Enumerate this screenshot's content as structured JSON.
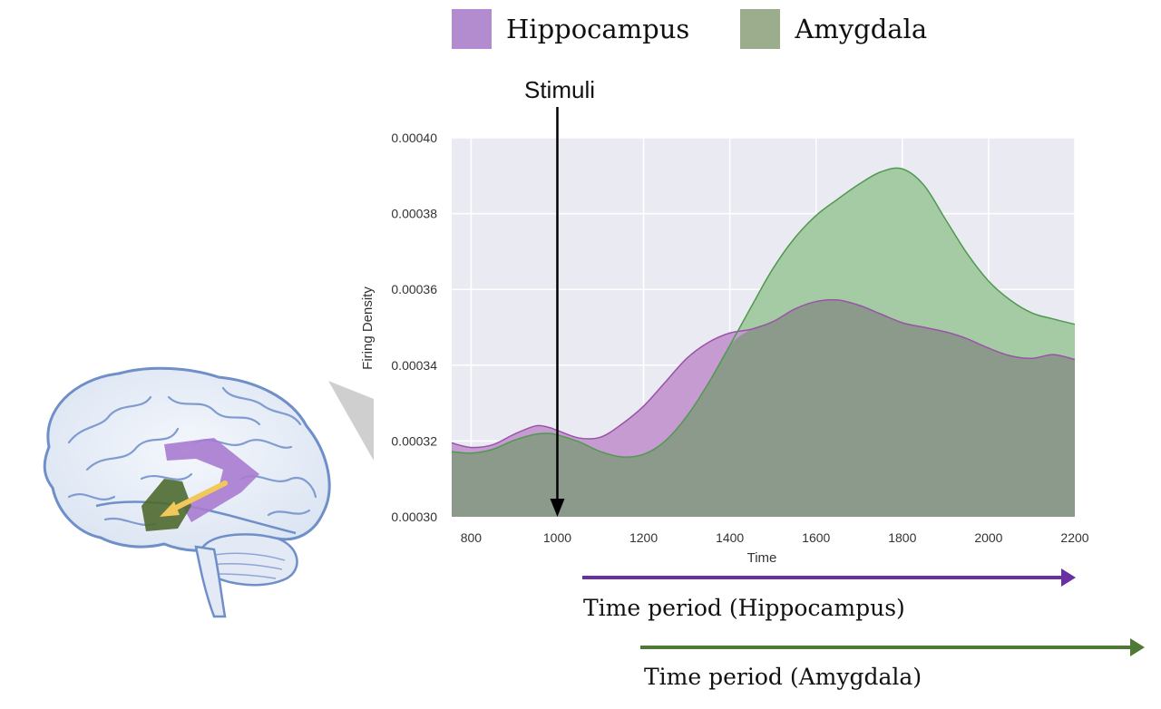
{
  "legend": {
    "items": [
      {
        "label": "Hippocampus",
        "color": "#b28ccf"
      },
      {
        "label": "Amygdala",
        "color": "#9cad8e"
      }
    ]
  },
  "annotations": {
    "stimuli_label": "Stimuli",
    "stimuli_time": 1000,
    "hippocampus_period_label": "Time period (Hippocampus)",
    "amygdala_period_label": "Time period (Amygdala)",
    "hippocampus_period_color": "#6a2fa0",
    "amygdala_period_color": "#4e7a35"
  },
  "chart_data": {
    "type": "area",
    "title": "",
    "xlabel": "Time",
    "ylabel": "Firing Density",
    "xlim": [
      755,
      2200
    ],
    "ylim": [
      0.0003,
      0.0004
    ],
    "xticks": [
      800,
      1000,
      1200,
      1400,
      1600,
      1800,
      2000,
      2200
    ],
    "yticks": [
      "0.00030",
      "0.00032",
      "0.00034",
      "0.00036",
      "0.00038",
      "0.00040"
    ],
    "grid": true,
    "series": [
      {
        "name": "Hippocampus",
        "fill": "#c69bd1",
        "stroke": "#9a53a8",
        "x": [
          755,
          800,
          850,
          900,
          950,
          980,
          1000,
          1050,
          1100,
          1150,
          1200,
          1250,
          1300,
          1350,
          1400,
          1450,
          1500,
          1550,
          1600,
          1650,
          1700,
          1750,
          1800,
          1850,
          1900,
          1950,
          2000,
          2050,
          2100,
          2150,
          2200
        ],
        "y": [
          0.0003195,
          0.0003183,
          0.000319,
          0.0003218,
          0.000324,
          0.0003236,
          0.0003228,
          0.0003208,
          0.000321,
          0.0003245,
          0.0003292,
          0.0003355,
          0.0003418,
          0.000346,
          0.0003485,
          0.0003495,
          0.0003515,
          0.0003548,
          0.0003568,
          0.0003572,
          0.0003558,
          0.0003535,
          0.0003512,
          0.00035,
          0.0003488,
          0.000347,
          0.0003445,
          0.0003425,
          0.0003418,
          0.0003428,
          0.0003415
        ]
      },
      {
        "name": "Amygdala",
        "fill": "#a5cba5",
        "stroke": "#4f9a4f",
        "x": [
          755,
          800,
          850,
          900,
          950,
          980,
          1000,
          1050,
          1100,
          1150,
          1200,
          1250,
          1300,
          1350,
          1400,
          1450,
          1500,
          1550,
          1600,
          1650,
          1700,
          1750,
          1800,
          1850,
          1900,
          1950,
          2000,
          2050,
          2100,
          2150,
          2200
        ],
        "y": [
          0.0003172,
          0.0003168,
          0.0003178,
          0.0003202,
          0.0003218,
          0.000322,
          0.0003216,
          0.0003198,
          0.0003172,
          0.0003158,
          0.0003165,
          0.00032,
          0.0003265,
          0.0003352,
          0.0003452,
          0.0003555,
          0.0003655,
          0.0003735,
          0.0003795,
          0.0003838,
          0.0003878,
          0.000391,
          0.0003918,
          0.0003875,
          0.0003785,
          0.0003695,
          0.0003622,
          0.0003572,
          0.0003538,
          0.0003522,
          0.0003508
        ]
      }
    ],
    "overlap_color": "#8b9a8a",
    "overlap_stroke": "#6e6e7a"
  }
}
